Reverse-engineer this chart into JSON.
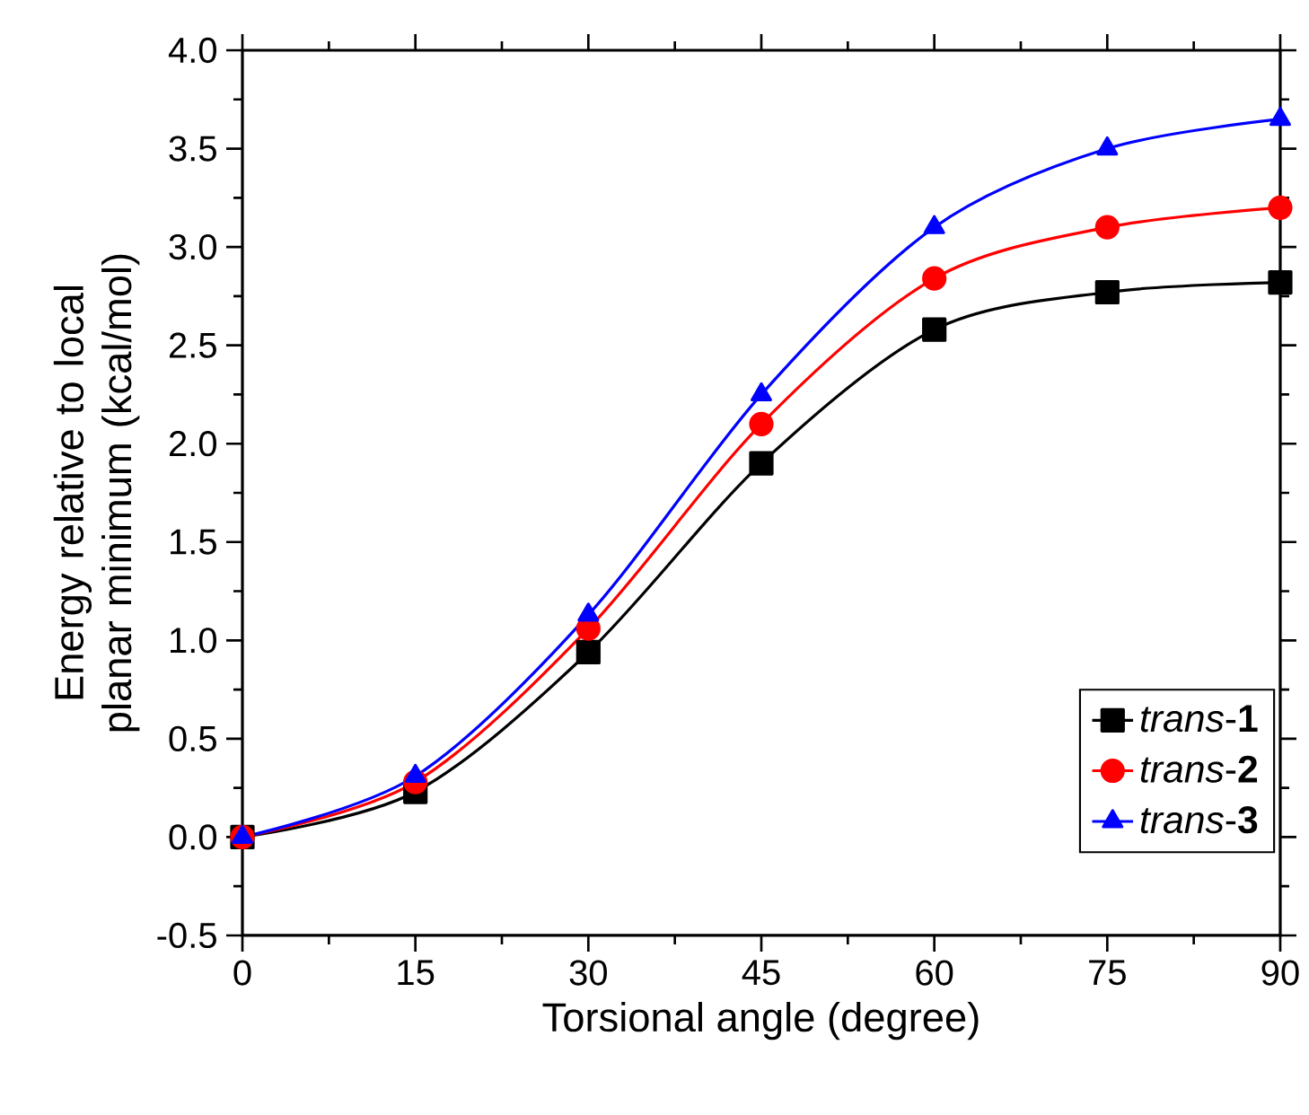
{
  "chart_data": {
    "type": "line",
    "xlabel": "Torsional angle (degree)",
    "ylabel": "Energy relative to local planar minimum (kcal/mol)",
    "x": [
      0,
      15,
      30,
      45,
      60,
      75,
      90
    ],
    "series": [
      {
        "name": "*trans*-**1**",
        "color": "#000000",
        "marker": "square",
        "values": [
          0,
          0.23,
          0.94,
          1.9,
          2.58,
          2.77,
          2.82
        ]
      },
      {
        "name": "*trans*-**2**",
        "color": "#ff0000",
        "marker": "circle",
        "values": [
          0,
          0.28,
          1.06,
          2.1,
          2.84,
          3.1,
          3.2
        ]
      },
      {
        "name": "*trans*-**3**",
        "color": "#0000ff",
        "marker": "triangle",
        "values": [
          0,
          0.31,
          1.13,
          2.25,
          3.1,
          3.5,
          3.65
        ]
      }
    ],
    "xlim": [
      0,
      90
    ],
    "xticks": [
      0,
      15,
      30,
      45,
      60,
      75,
      90
    ],
    "ylim": [
      -0.5,
      4.0
    ],
    "yticks": [
      {
        "value": -0.5,
        "label": "-0.5"
      },
      {
        "value": 0,
        "label": "0.0"
      },
      {
        "value": 0.5,
        "label": "0.5"
      },
      {
        "value": 1,
        "label": "1.0"
      },
      {
        "value": 1.5,
        "label": "1.5"
      },
      {
        "value": 2,
        "label": "2.0"
      },
      {
        "value": 2.5,
        "label": "2.5"
      },
      {
        "value": 3,
        "label": "3.0"
      },
      {
        "value": 3.5,
        "label": "3.5"
      },
      {
        "value": 4,
        "label": "4.0"
      }
    ],
    "legend": "bottom right",
    "grid": false,
    "line_style": "solid"
  }
}
